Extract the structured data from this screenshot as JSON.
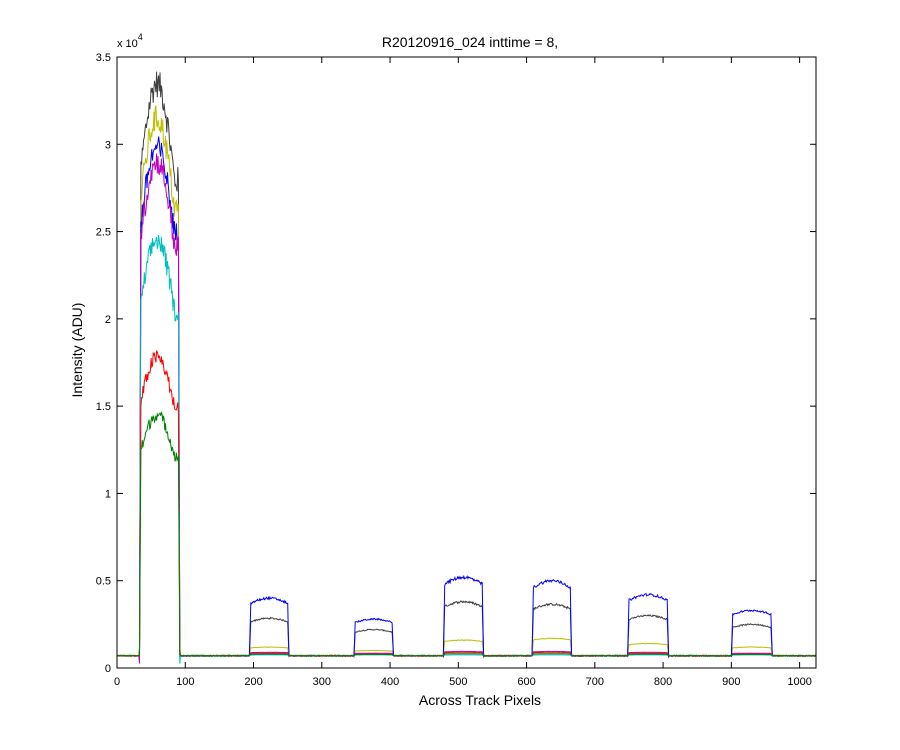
{
  "chart_data": {
    "type": "line",
    "title": "R20120916_024 inttime = 8,",
    "xlabel": "Across Track Pixels",
    "ylabel": "Intensity (ADU)",
    "xlim": [
      0,
      1024
    ],
    "ylim": [
      0,
      35000
    ],
    "x_ticks": [
      0,
      100,
      200,
      300,
      400,
      500,
      600,
      700,
      800,
      900,
      1000
    ],
    "y_ticks": [
      0,
      0.5,
      1,
      1.5,
      2,
      2.5,
      3,
      3.5
    ],
    "y_tick_values": [
      0,
      5000,
      10000,
      15000,
      20000,
      25000,
      30000,
      35000
    ],
    "y_multiplier_base": "x 10",
    "y_multiplier_exp": "4",
    "grid": false,
    "baseline": 700,
    "series": [
      {
        "color": "#404040",
        "peaks": [
          33500,
          2850,
          2200,
          3800,
          3650,
          3000,
          2500
        ]
      },
      {
        "color": "#bfbf00",
        "peaks": [
          31500,
          1200,
          1000,
          1600,
          1700,
          1400,
          1200
        ]
      },
      {
        "color": "#0000ff",
        "peaks": [
          29800,
          4000,
          2800,
          5200,
          5000,
          4200,
          3300
        ]
      },
      {
        "color": "#bf00bf",
        "peaks": [
          29000,
          900,
          850,
          950,
          950,
          900,
          850
        ]
      },
      {
        "color": "#00bfbf",
        "peaks": [
          24500,
          750,
          750,
          750,
          750,
          750,
          750
        ]
      },
      {
        "color": "#ff0000",
        "peaks": [
          17800,
          850,
          800,
          900,
          900,
          850,
          800
        ]
      },
      {
        "color": "#008000",
        "peaks": [
          14500,
          800,
          780,
          820,
          820,
          800,
          780
        ]
      }
    ],
    "blocks": [
      {
        "start": 33,
        "end": 92
      },
      {
        "start": 194,
        "end": 252
      },
      {
        "start": 347,
        "end": 405
      },
      {
        "start": 478,
        "end": 537
      },
      {
        "start": 608,
        "end": 666
      },
      {
        "start": 748,
        "end": 808
      },
      {
        "start": 900,
        "end": 960
      }
    ]
  }
}
